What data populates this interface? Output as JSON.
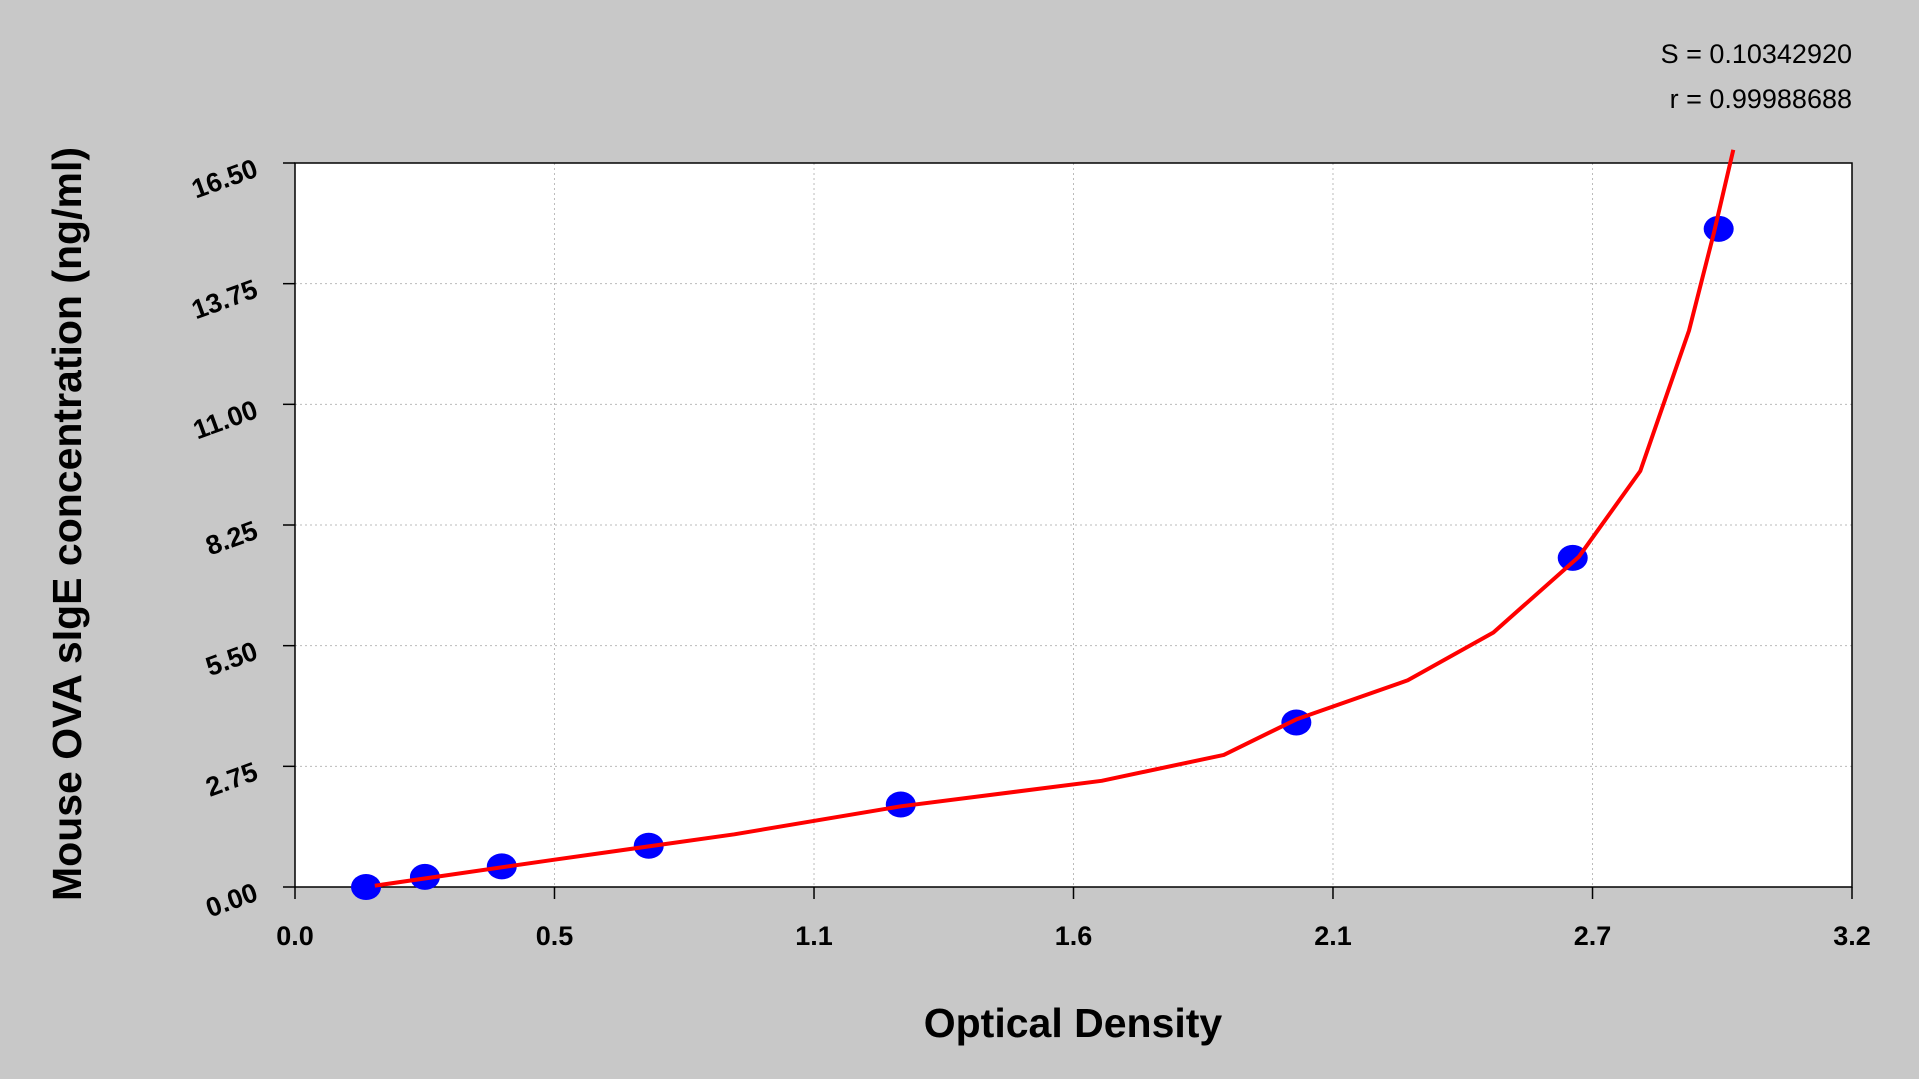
{
  "chart_data": {
    "type": "scatter",
    "title": null,
    "xlabel": "Optical Density",
    "ylabel": "Mouse OVA sIgE concentration (ng/ml)",
    "annotations": [
      "S = 0.10342920",
      "r = 0.99988688"
    ],
    "xlim": [
      0,
      3.2
    ],
    "ylim": [
      0,
      16.5
    ],
    "xticks": [
      {
        "value": 0,
        "label": "0.0"
      },
      {
        "value": 0.5333,
        "label": "0.5"
      },
      {
        "value": 1.0667,
        "label": "1.1"
      },
      1.6,
      {
        "value": 2.1333,
        "label": "2.1"
      },
      {
        "value": 2.6667,
        "label": "2.7"
      },
      3.2
    ],
    "yticks": [
      {
        "value": 0,
        "label": "0.00"
      },
      2.75,
      {
        "value": 5.5,
        "label": "5.50"
      },
      8.25,
      {
        "value": 11,
        "label": "11.00"
      },
      13.75,
      {
        "value": 16.5,
        "label": "16.50"
      }
    ],
    "grid": true,
    "series": [
      {
        "type": "scatter",
        "color": "#0000ff",
        "x": [
          0.146,
          0.267,
          0.425,
          0.727,
          1.245,
          2.058,
          2.626,
          2.926
        ],
        "values": [
          0,
          0.23,
          0.47,
          0.94,
          1.88,
          3.75,
          7.5,
          15
        ]
      },
      {
        "type": "line",
        "color": "#ff0000",
        "x": [
          0.164,
          0.526,
          0.903,
          1.245,
          1.658,
          1.909,
          2.058,
          2.287,
          2.463,
          2.639,
          2.765,
          2.865,
          2.916,
          2.956
        ],
        "values": [
          0.03,
          0.61,
          1.2,
          1.84,
          2.42,
          3.01,
          3.82,
          4.71,
          5.8,
          7.53,
          9.48,
          12.68,
          14.9,
          16.8
        ]
      }
    ]
  }
}
